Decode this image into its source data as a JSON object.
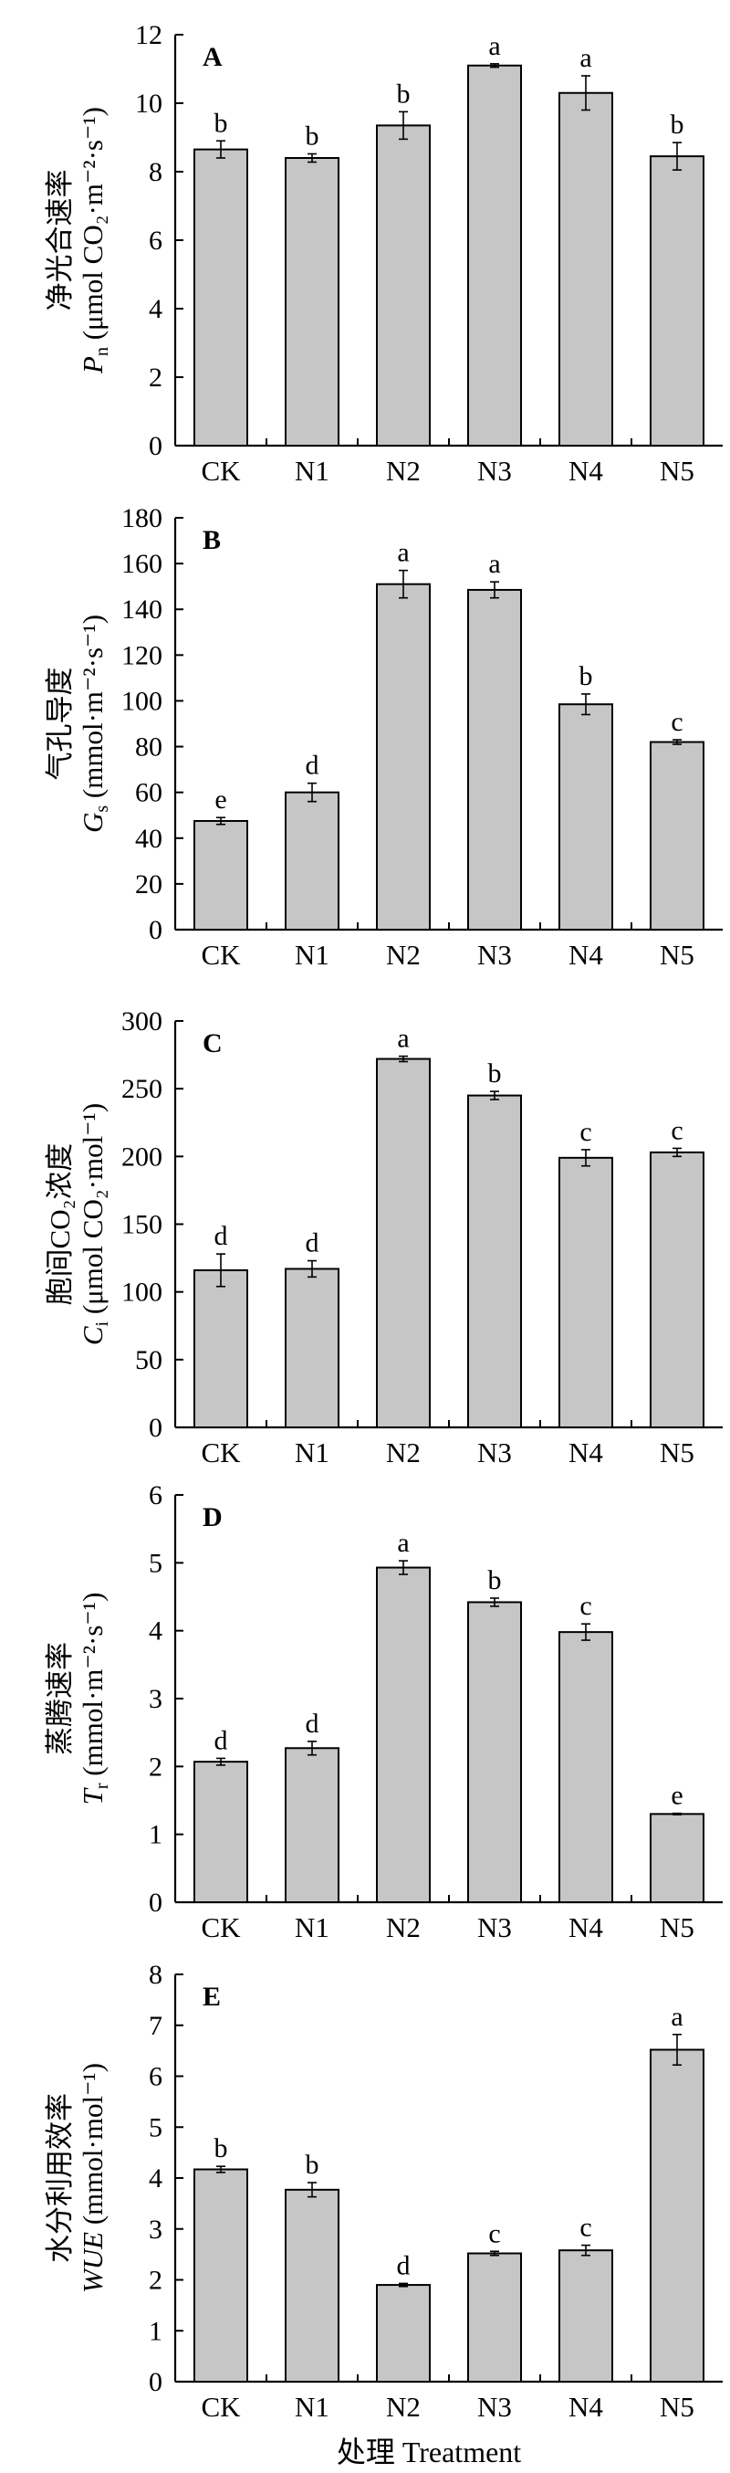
{
  "figure": {
    "x_title": "处理  Treatment"
  },
  "chart_data": [
    {
      "type": "bar",
      "panel": "A",
      "categories": [
        "CK",
        "N1",
        "N2",
        "N3",
        "N4",
        "N5"
      ],
      "values": [
        8.65,
        8.4,
        9.35,
        11.1,
        10.3,
        8.45
      ],
      "errors": [
        0.25,
        0.12,
        0.4,
        0.05,
        0.5,
        0.4
      ],
      "significance": [
        "b",
        "b",
        "b",
        "a",
        "a",
        "b"
      ],
      "ylim": [
        0,
        12
      ],
      "yticks": [
        0,
        2,
        4,
        6,
        8,
        10,
        12
      ],
      "ylabel_cn": "净光合速率",
      "ylabel_var": "P",
      "ylabel_sub": "n",
      "ylabel_unit": "(μmol CO₂·m⁻²·s⁻¹)"
    },
    {
      "type": "bar",
      "panel": "B",
      "categories": [
        "CK",
        "N1",
        "N2",
        "N3",
        "N4",
        "N5"
      ],
      "values": [
        47.5,
        60,
        151,
        148.5,
        98.5,
        82
      ],
      "errors": [
        1.5,
        4,
        6,
        3.5,
        4.5,
        1
      ],
      "significance": [
        "e",
        "d",
        "a",
        "a",
        "b",
        "c"
      ],
      "ylim": [
        0,
        180
      ],
      "yticks": [
        0,
        20,
        40,
        60,
        80,
        100,
        120,
        140,
        160,
        180
      ],
      "ylabel_cn": "气孔导度",
      "ylabel_var": "G",
      "ylabel_sub": "s",
      "ylabel_unit": "(mmol·m⁻²·s⁻¹)"
    },
    {
      "type": "bar",
      "panel": "C",
      "categories": [
        "CK",
        "N1",
        "N2",
        "N3",
        "N4",
        "N5"
      ],
      "values": [
        116,
        117,
        272,
        245,
        199,
        203
      ],
      "errors": [
        12,
        6,
        2,
        3,
        6,
        3
      ],
      "significance": [
        "d",
        "d",
        "a",
        "b",
        "c",
        "c"
      ],
      "ylim": [
        0,
        300
      ],
      "yticks": [
        0,
        50,
        100,
        150,
        200,
        250,
        300
      ],
      "ylabel_cn": "胞间CO₂浓度",
      "ylabel_var": "C",
      "ylabel_sub": "i",
      "ylabel_unit": "(μmol CO₂·mol⁻¹)"
    },
    {
      "type": "bar",
      "panel": "D",
      "categories": [
        "CK",
        "N1",
        "N2",
        "N3",
        "N4",
        "N5"
      ],
      "values": [
        2.07,
        2.27,
        4.93,
        4.42,
        3.98,
        1.3
      ],
      "errors": [
        0.05,
        0.1,
        0.1,
        0.06,
        0.12,
        0.01
      ],
      "significance": [
        "d",
        "d",
        "a",
        "b",
        "c",
        "e"
      ],
      "ylim": [
        0,
        6
      ],
      "yticks": [
        0,
        1,
        2,
        3,
        4,
        5,
        6
      ],
      "ylabel_cn": "蒸腾速率",
      "ylabel_var": "T",
      "ylabel_sub": "r",
      "ylabel_unit": "(mmol·m⁻²·s⁻¹)"
    },
    {
      "type": "bar",
      "panel": "E",
      "categories": [
        "CK",
        "N1",
        "N2",
        "N3",
        "N4",
        "N5"
      ],
      "values": [
        4.17,
        3.77,
        1.9,
        2.52,
        2.58,
        6.52
      ],
      "errors": [
        0.06,
        0.14,
        0.03,
        0.04,
        0.1,
        0.3
      ],
      "significance": [
        "b",
        "b",
        "d",
        "c",
        "c",
        "a"
      ],
      "ylim": [
        0,
        8
      ],
      "yticks": [
        0,
        1,
        2,
        3,
        4,
        5,
        6,
        7,
        8
      ],
      "ylabel_cn": "水分利用效率",
      "ylabel_var": "WUE",
      "ylabel_sub": "",
      "ylabel_unit": "(mmol·mol⁻¹)"
    }
  ]
}
